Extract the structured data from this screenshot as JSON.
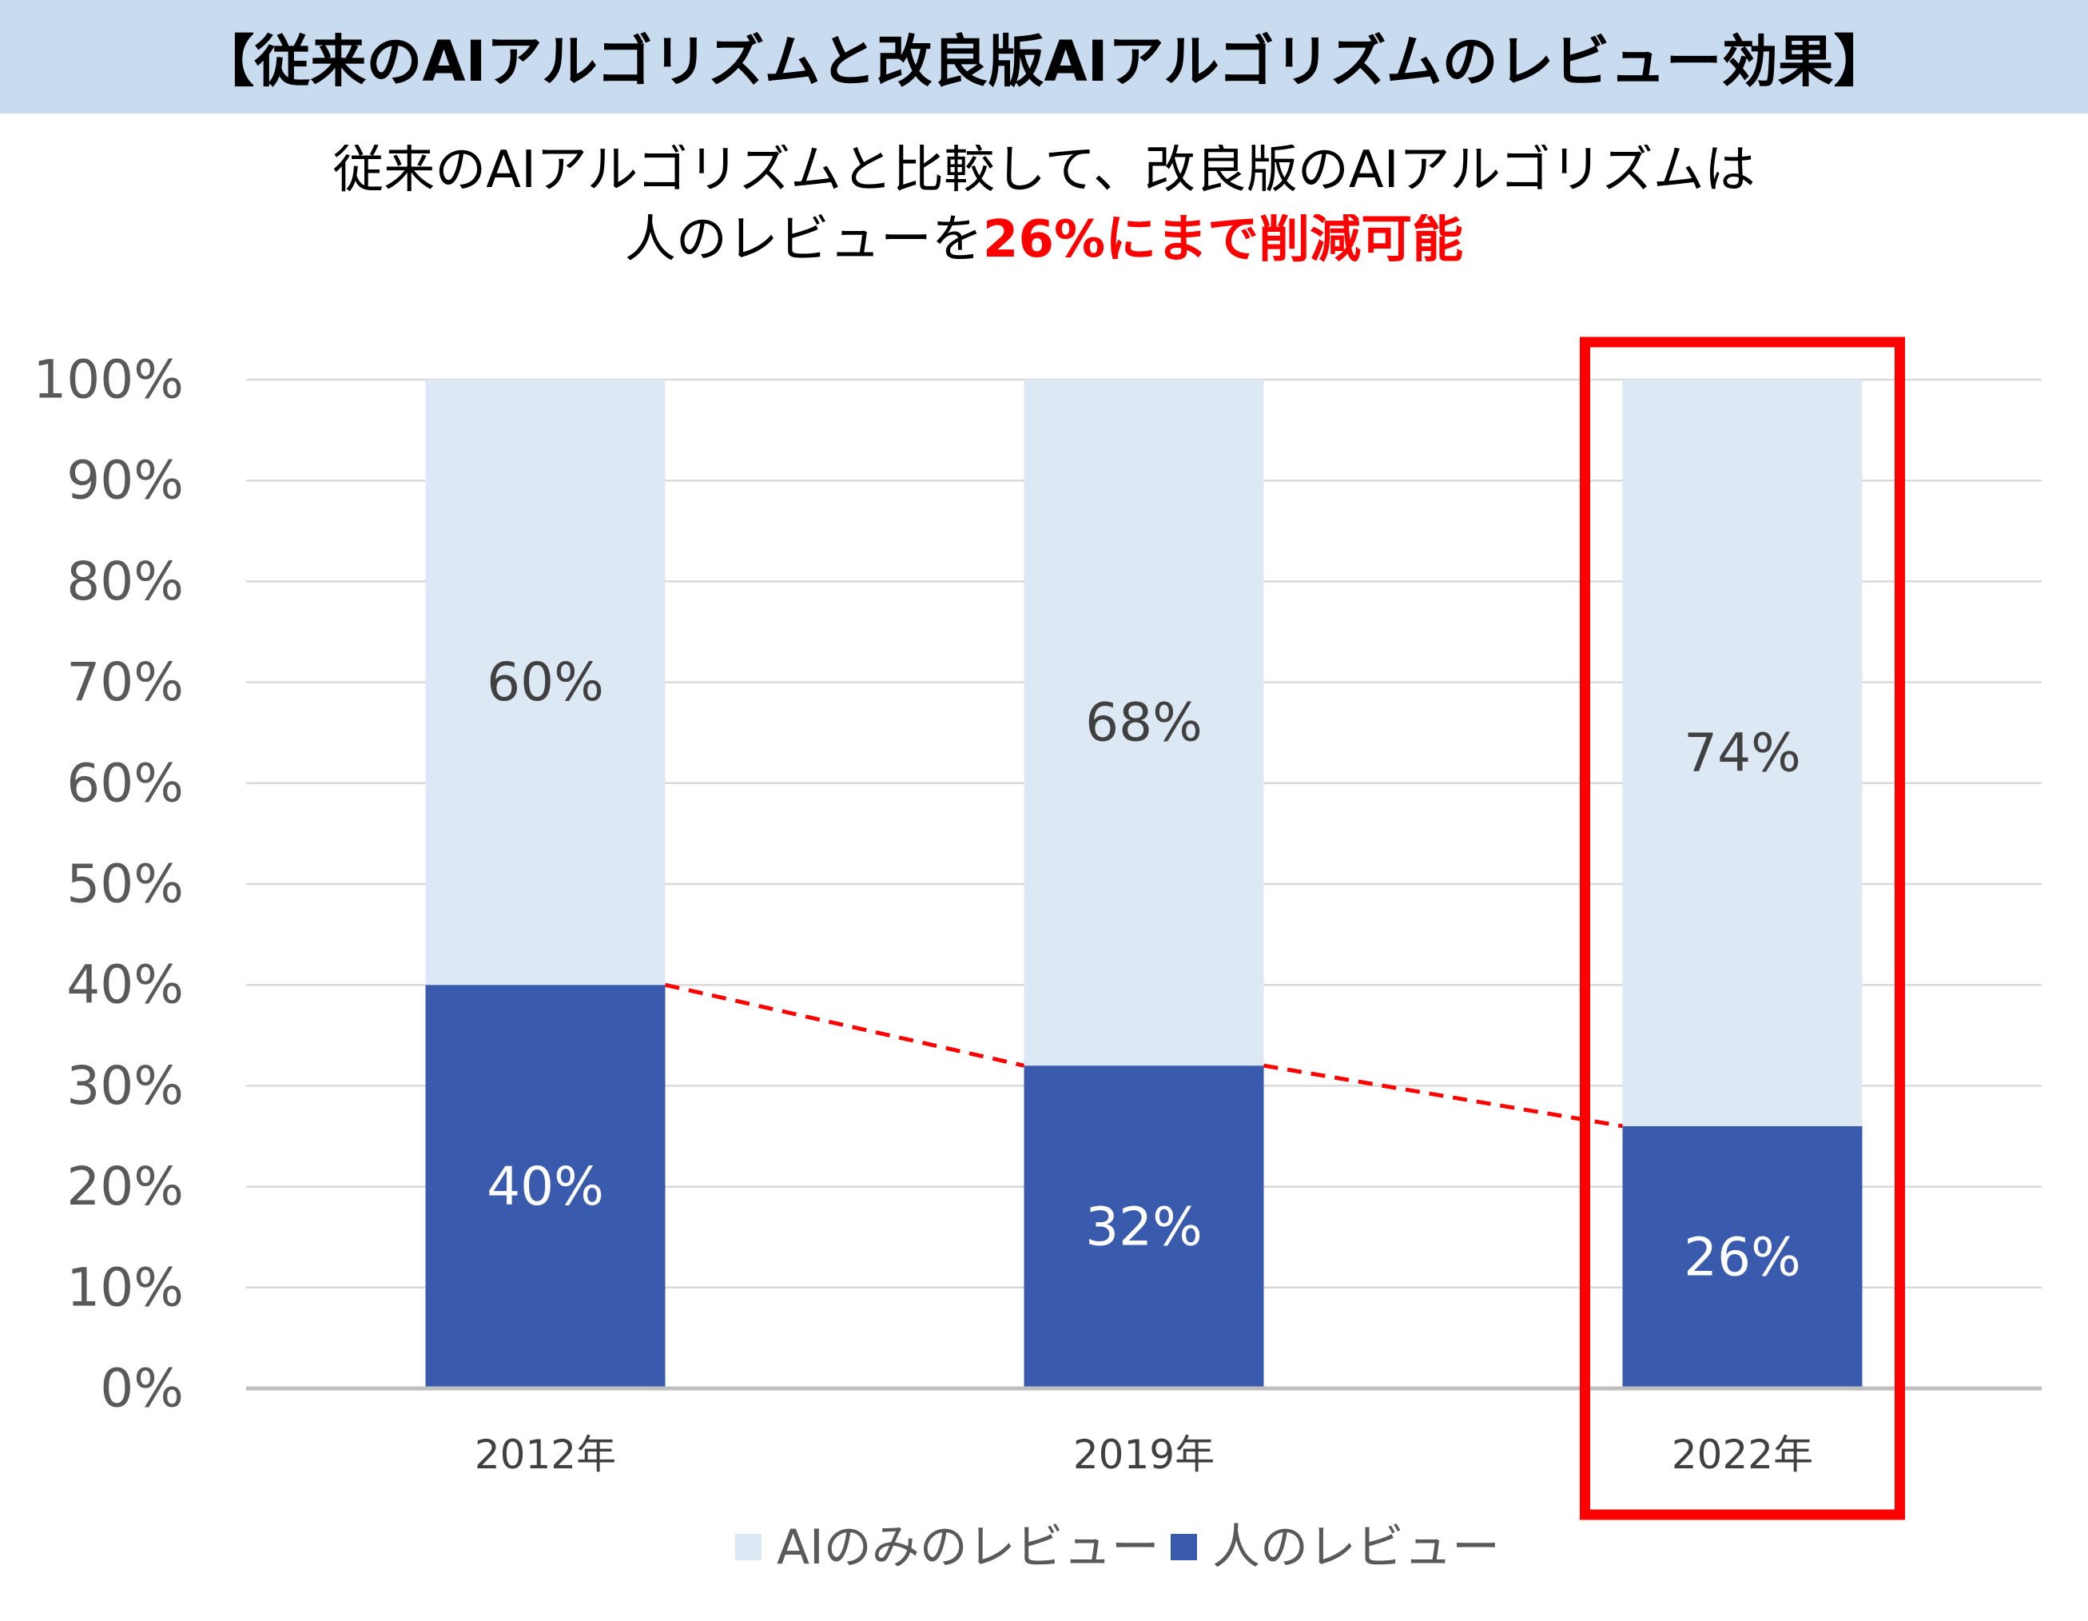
{
  "header": {
    "title": "【従来のAIアルゴリズムと改良版AIアルゴリズムのレビュー効果】"
  },
  "subtitle": {
    "line1": "従来のAIアルゴリズムと比較して、改良版のAIアルゴリズムは",
    "line2_text": "人のレビューを",
    "line2_highlight": "26%にまで削減可能"
  },
  "colors": {
    "header_background": "#c9dcef",
    "highlight_text": "#ff0000",
    "highlight_box": "#ff0000",
    "trend_line": "#ff0000",
    "gridline": "#d9d9d9",
    "axis": "#bfbfbf"
  },
  "chart_data": {
    "type": "bar",
    "stacked": true,
    "categories": [
      "2012年",
      "2019年",
      "2022年"
    ],
    "series": [
      {
        "name": "人のレビュー",
        "values": [
          40,
          32,
          26
        ],
        "labels": [
          "40%",
          "32%",
          "26%"
        ],
        "color": "#3a5bad",
        "label_color": "#ffffff"
      },
      {
        "name": "AIのみのレビュー",
        "values": [
          60,
          68,
          74
        ],
        "labels": [
          "60%",
          "68%",
          "74%"
        ],
        "color": "#dde8f5",
        "label_color": "#404040"
      }
    ],
    "ylim": [
      0,
      100
    ],
    "y_tick_labels": [
      "0%",
      "10%",
      "20%",
      "30%",
      "40%",
      "50%",
      "60%",
      "70%",
      "80%",
      "90%",
      "100%"
    ],
    "grid": true,
    "legend": "bottom",
    "trend_line": {
      "series_index": 0,
      "dashed": true
    },
    "highlighted_category_index": 2
  }
}
